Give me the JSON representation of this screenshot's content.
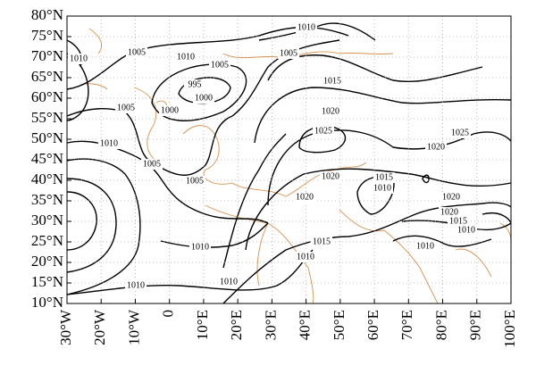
{
  "map": {
    "x_axis": {
      "ticks": [
        {
          "value": -30,
          "label": "30°W"
        },
        {
          "value": -20,
          "label": "20°W"
        },
        {
          "value": -10,
          "label": "10°W"
        },
        {
          "value": 0,
          "label": "0"
        },
        {
          "value": 10,
          "label": "10°E"
        },
        {
          "value": 20,
          "label": "20°E"
        },
        {
          "value": 30,
          "label": "30°E"
        },
        {
          "value": 40,
          "label": "40°E"
        },
        {
          "value": 50,
          "label": "50°E"
        },
        {
          "value": 60,
          "label": "60°E"
        },
        {
          "value": 70,
          "label": "70°E"
        },
        {
          "value": 80,
          "label": "80°E"
        },
        {
          "value": 90,
          "label": "90°E"
        },
        {
          "value": 100,
          "label": "100°E"
        }
      ]
    },
    "y_axis": {
      "ticks": [
        {
          "value": 10,
          "label": "10°N"
        },
        {
          "value": 15,
          "label": "15°N"
        },
        {
          "value": 20,
          "label": "20°N"
        },
        {
          "value": 25,
          "label": "25°N"
        },
        {
          "value": 30,
          "label": "30°N"
        },
        {
          "value": 35,
          "label": "35°N"
        },
        {
          "value": 40,
          "label": "40°N"
        },
        {
          "value": 45,
          "label": "45°N"
        },
        {
          "value": 50,
          "label": "50°N"
        },
        {
          "value": 55,
          "label": "55°N"
        },
        {
          "value": 60,
          "label": "60°N"
        },
        {
          "value": 65,
          "label": "65°N"
        },
        {
          "value": 70,
          "label": "70°N"
        },
        {
          "value": 75,
          "label": "75°N"
        },
        {
          "value": 80,
          "label": "80°N"
        }
      ]
    },
    "contour_labels": [
      "1010",
      "1010",
      "1005",
      "1010",
      "1005",
      "1005",
      "1000",
      "995",
      "1015",
      "1005",
      "1000",
      "1020",
      "1025",
      "1025",
      "1010",
      "1020",
      "1005",
      "1020",
      "1015",
      "1010",
      "1005",
      "1020",
      "1020",
      "1020",
      "1015",
      "1010",
      "1010",
      "1015",
      "1010",
      "1010",
      "1010",
      "1010"
    ]
  }
}
